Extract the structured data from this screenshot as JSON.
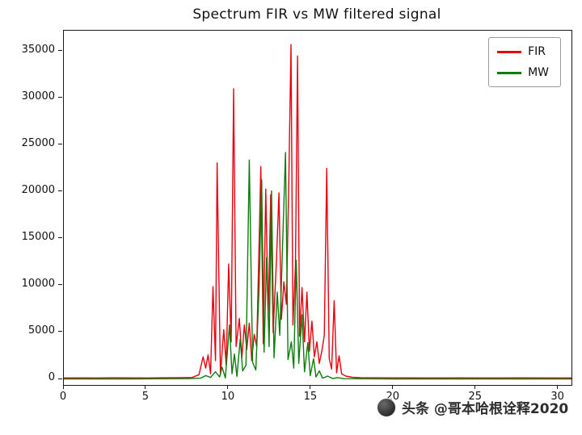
{
  "title": "Spectrum FIR vs MW filtered signal",
  "watermark": {
    "text": "头条 @哥本哈根诠释2020"
  },
  "chart_data": {
    "type": "line",
    "title": "Spectrum FIR vs MW filtered signal",
    "xlabel": "",
    "ylabel": "",
    "xlim": [
      0,
      30.8
    ],
    "ylim": [
      -600,
      37200
    ],
    "x_ticks": [
      0,
      5,
      10,
      15,
      20,
      25,
      30
    ],
    "y_ticks": [
      0,
      5000,
      10000,
      15000,
      20000,
      25000,
      30000,
      35000
    ],
    "grid": false,
    "legend_position": "upper right",
    "series": [
      {
        "name": "FIR",
        "color": "#e8000d",
        "points": [
          [
            0,
            150
          ],
          [
            1,
            160
          ],
          [
            2,
            150
          ],
          [
            3,
            170
          ],
          [
            4,
            160
          ],
          [
            5,
            150
          ],
          [
            6,
            170
          ],
          [
            7,
            180
          ],
          [
            7.8,
            200
          ],
          [
            8.2,
            500
          ],
          [
            8.45,
            2400
          ],
          [
            8.6,
            1200
          ],
          [
            8.75,
            2600
          ],
          [
            8.9,
            600
          ],
          [
            9.05,
            9900
          ],
          [
            9.2,
            2000
          ],
          [
            9.3,
            23100
          ],
          [
            9.5,
            500
          ],
          [
            9.7,
            5300
          ],
          [
            9.85,
            1500
          ],
          [
            10.0,
            12300
          ],
          [
            10.15,
            4000
          ],
          [
            10.3,
            31000
          ],
          [
            10.45,
            3500
          ],
          [
            10.65,
            6500
          ],
          [
            10.8,
            2300
          ],
          [
            10.95,
            5800
          ],
          [
            11.1,
            3200
          ],
          [
            11.25,
            6000
          ],
          [
            11.4,
            2000
          ],
          [
            11.55,
            4800
          ],
          [
            11.7,
            3500
          ],
          [
            11.95,
            22700
          ],
          [
            12.1,
            3800
          ],
          [
            12.25,
            20300
          ],
          [
            12.4,
            6500
          ],
          [
            12.55,
            19700
          ],
          [
            12.7,
            5000
          ],
          [
            12.9,
            12600
          ],
          [
            13.05,
            19900
          ],
          [
            13.2,
            6400
          ],
          [
            13.35,
            10400
          ],
          [
            13.5,
            8000
          ],
          [
            13.65,
            21200
          ],
          [
            13.78,
            35700
          ],
          [
            13.9,
            5800
          ],
          [
            14.05,
            12100
          ],
          [
            14.18,
            34500
          ],
          [
            14.3,
            4600
          ],
          [
            14.45,
            9800
          ],
          [
            14.6,
            4000
          ],
          [
            14.75,
            9300
          ],
          [
            14.9,
            3000
          ],
          [
            15.05,
            6200
          ],
          [
            15.2,
            2400
          ],
          [
            15.35,
            4000
          ],
          [
            15.5,
            1700
          ],
          [
            15.65,
            3000
          ],
          [
            15.8,
            4700
          ],
          [
            15.95,
            22500
          ],
          [
            16.1,
            2200
          ],
          [
            16.25,
            1100
          ],
          [
            16.4,
            8400
          ],
          [
            16.55,
            700
          ],
          [
            16.7,
            2500
          ],
          [
            16.85,
            600
          ],
          [
            17.1,
            350
          ],
          [
            17.5,
            220
          ],
          [
            18,
            180
          ],
          [
            20,
            160
          ],
          [
            22,
            150
          ],
          [
            24,
            160
          ],
          [
            26,
            150
          ],
          [
            28,
            160
          ],
          [
            30.8,
            150
          ]
        ]
      },
      {
        "name": "MW",
        "color": "#0a7d0a",
        "points": [
          [
            0,
            40
          ],
          [
            2,
            50
          ],
          [
            4,
            50
          ],
          [
            6,
            60
          ],
          [
            7.5,
            70
          ],
          [
            8.3,
            120
          ],
          [
            8.6,
            400
          ],
          [
            8.9,
            200
          ],
          [
            9.2,
            800
          ],
          [
            9.45,
            250
          ],
          [
            9.6,
            1300
          ],
          [
            9.8,
            150
          ],
          [
            10.05,
            5800
          ],
          [
            10.2,
            600
          ],
          [
            10.35,
            2700
          ],
          [
            10.5,
            300
          ],
          [
            10.7,
            4300
          ],
          [
            10.85,
            900
          ],
          [
            11.05,
            1500
          ],
          [
            11.25,
            23400
          ],
          [
            11.45,
            1800
          ],
          [
            11.65,
            1000
          ],
          [
            11.85,
            9900
          ],
          [
            12.0,
            21300
          ],
          [
            12.15,
            2900
          ],
          [
            12.3,
            13000
          ],
          [
            12.45,
            3500
          ],
          [
            12.6,
            20100
          ],
          [
            12.75,
            2300
          ],
          [
            12.95,
            9300
          ],
          [
            13.1,
            4700
          ],
          [
            13.3,
            16000
          ],
          [
            13.45,
            24200
          ],
          [
            13.6,
            2100
          ],
          [
            13.8,
            4000
          ],
          [
            13.95,
            1200
          ],
          [
            14.1,
            12700
          ],
          [
            14.25,
            1700
          ],
          [
            14.45,
            6900
          ],
          [
            14.6,
            800
          ],
          [
            14.8,
            3900
          ],
          [
            14.95,
            400
          ],
          [
            15.15,
            2200
          ],
          [
            15.3,
            250
          ],
          [
            15.5,
            900
          ],
          [
            15.7,
            120
          ],
          [
            16.0,
            350
          ],
          [
            16.3,
            90
          ],
          [
            16.6,
            180
          ],
          [
            17,
            70
          ],
          [
            18,
            60
          ],
          [
            20,
            50
          ],
          [
            24,
            50
          ],
          [
            28,
            50
          ],
          [
            30.8,
            40
          ]
        ]
      }
    ]
  }
}
